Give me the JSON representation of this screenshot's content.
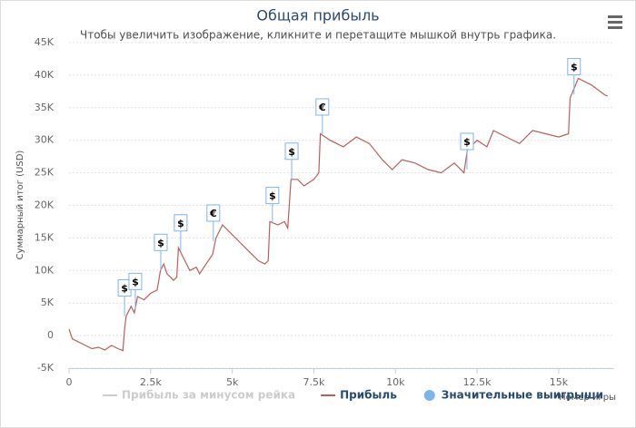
{
  "chart_data": {
    "type": "line",
    "title": "Общая прибыль",
    "subtitle": "Чтобы увеличить изображение, кликните и перетащите мышкой внутрь графика.",
    "y_axis_title": "Суммарный итог (USD)",
    "x_axis_title": "Номер игры",
    "xlim": [
      0,
      16700
    ],
    "xticks": [
      0,
      {
        "value": 2500,
        "label": "2.5k"
      },
      {
        "value": 5000,
        "label": "5k"
      },
      {
        "value": 7500,
        "label": "7.5k"
      },
      {
        "value": 10000,
        "label": "10k"
      },
      {
        "value": 12500,
        "label": "12.5k"
      },
      {
        "value": 15000,
        "label": "15k"
      }
    ],
    "ylim": [
      -5000,
      45000
    ],
    "yticks": [
      {
        "value": -5000,
        "label": "-5K"
      },
      0,
      {
        "value": 5000,
        "label": "5K"
      },
      {
        "value": 10000,
        "label": "10K"
      },
      {
        "value": 15000,
        "label": "15K"
      },
      {
        "value": 20000,
        "label": "20K"
      },
      {
        "value": 25000,
        "label": "25K"
      },
      {
        "value": 30000,
        "label": "30K"
      },
      {
        "value": 35000,
        "label": "35K"
      },
      {
        "value": 40000,
        "label": "40K"
      },
      {
        "value": 45000,
        "label": "45K"
      }
    ],
    "grid": true,
    "series": [
      {
        "name": "Прибыль за минусом рейка",
        "color": "#cccccc",
        "visible": false
      },
      {
        "name": "Прибыль",
        "color": "#b5605c",
        "x": [
          0,
          100,
          300,
          500,
          700,
          900,
          1100,
          1300,
          1500,
          1650,
          1700,
          1750,
          1900,
          2000,
          2100,
          2300,
          2500,
          2700,
          2800,
          2900,
          3000,
          3200,
          3300,
          3350,
          3500,
          3700,
          3900,
          4000,
          4200,
          4400,
          4500,
          4700,
          4900,
          5200,
          5500,
          5800,
          6000,
          6100,
          6150,
          6400,
          6600,
          6700,
          6800,
          7000,
          7200,
          7500,
          7650,
          7700,
          8000,
          8400,
          8800,
          9200,
          9600,
          9900,
          10200,
          10600,
          11000,
          11400,
          11800,
          12100,
          12200,
          12500,
          12800,
          13000,
          13400,
          13800,
          14200,
          14600,
          15000,
          15300,
          15350,
          15600,
          16000,
          16400,
          16500
        ],
        "values": [
          1000,
          -500,
          -1000,
          -1500,
          -2000,
          -1800,
          -2200,
          -1500,
          -2000,
          -2300,
          1000,
          3000,
          4500,
          3500,
          6000,
          5500,
          6500,
          7000,
          10000,
          11000,
          9500,
          8500,
          9000,
          13500,
          12000,
          10000,
          10500,
          9500,
          11000,
          12500,
          15000,
          17000,
          16000,
          14500,
          13000,
          11500,
          11000,
          11500,
          17500,
          17000,
          17500,
          16500,
          24000,
          24000,
          23000,
          24000,
          25000,
          31000,
          30000,
          29000,
          30500,
          29500,
          27000,
          25500,
          27000,
          26500,
          25500,
          25000,
          26500,
          25000,
          28500,
          30000,
          29000,
          31500,
          30500,
          29500,
          31500,
          31000,
          30500,
          31000,
          36500,
          39500,
          38500,
          37000,
          36800
        ]
      },
      {
        "name": "Значительные выигрыши",
        "type": "flags",
        "color": "#7cb5ec",
        "x": [
          1700,
          2030,
          2810,
          3420,
          4420,
          6230,
          6820,
          7760,
          12190,
          15470
        ],
        "values": [
          3000,
          4000,
          10000,
          13000,
          14500,
          17200,
          24000,
          30800,
          25500,
          37000
        ],
        "labels": [
          "$",
          "$",
          "$",
          "$",
          "€",
          "$",
          "$",
          "€",
          "$",
          "$"
        ]
      }
    ]
  }
}
